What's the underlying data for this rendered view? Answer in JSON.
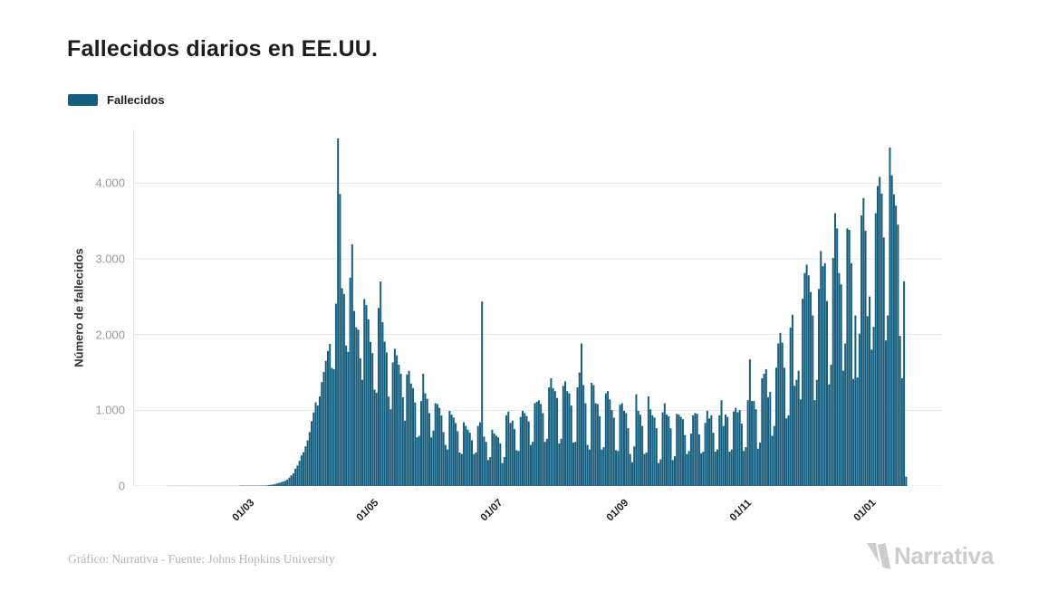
{
  "header": {
    "title": "Fallecidos diarios en EE.UU."
  },
  "legend": {
    "items": [
      {
        "label": "Fallecidos",
        "color": "#155E7D"
      }
    ]
  },
  "footer": {
    "credit": "Gráfico: Narrativa - Fuente: Johns Hopkins University",
    "brand": "Narrativa"
  },
  "colors": {
    "bar": "#155E7D",
    "grid": "#e6e6e6",
    "title_text": "#1d1d1b",
    "y_tick_text": "#9b9b9b",
    "x_tick_text": "#1d1d1b",
    "credit_text": "#b5b5b5",
    "brand_text": "#cdcdcd"
  },
  "chart_data": {
    "type": "bar",
    "title": "Fallecidos diarios en EE.UU.",
    "series_name": "Fallecidos",
    "xlabel": "",
    "ylabel": "Número de fallecidos",
    "start_date": "2020-01-22",
    "end_date": "2021-01-20",
    "ylim": [
      0,
      4710
    ],
    "grid": "horizontal",
    "legend_position": "top-left",
    "y_ticks": [
      {
        "label": "0",
        "value": 0
      },
      {
        "label": "1.000",
        "value": 1000
      },
      {
        "label": "2.000",
        "value": 2000
      },
      {
        "label": "3.000",
        "value": 3000
      },
      {
        "label": "4.000",
        "value": 4000
      }
    ],
    "x_ticks": [
      {
        "label": "01/03",
        "day": 39
      },
      {
        "label": "01/05",
        "day": 100
      },
      {
        "label": "01/07",
        "day": 161
      },
      {
        "label": "01/09",
        "day": 223
      },
      {
        "label": "01/11",
        "day": 284
      },
      {
        "label": "01/01",
        "day": 345
      }
    ],
    "values": [
      0,
      0,
      0,
      0,
      0,
      0,
      0,
      0,
      0,
      0,
      0,
      0,
      0,
      0,
      0,
      0,
      0,
      0,
      0,
      0,
      0,
      0,
      0,
      0,
      0,
      0,
      0,
      0,
      0,
      0,
      0,
      0,
      0,
      0,
      0,
      0,
      1,
      1,
      1,
      1,
      2,
      3,
      4,
      3,
      5,
      4,
      6,
      7,
      6,
      9,
      13,
      16,
      20,
      24,
      33,
      41,
      50,
      59,
      68,
      86,
      112,
      141,
      166,
      228,
      270,
      332,
      404,
      447,
      523,
      602,
      712,
      857,
      972,
      1105,
      1063,
      1183,
      1372,
      1508,
      1653,
      1783,
      1877,
      1561,
      1542,
      2408,
      4591,
      3857,
      2612,
      2535,
      1856,
      1772,
      2752,
      3192,
      2312,
      2096,
      2065,
      1687,
      1403,
      2471,
      2390,
      2201,
      1903,
      1755,
      1273,
      1232,
      2352,
      2701,
      2163,
      1907,
      1764,
      1181,
      1013,
      1633,
      1813,
      1725,
      1602,
      1483,
      1172,
      863,
      1473,
      1522,
      1353,
      1293,
      1103,
      643,
      662,
      1122,
      1483,
      1223,
      1152,
      963,
      643,
      732,
      1093,
      1083,
      1033,
      932,
      713,
      543,
      483,
      993,
      943,
      903,
      833,
      723,
      443,
      423,
      843,
      793,
      743,
      703,
      603,
      423,
      443,
      793,
      843,
      2437,
      653,
      583,
      343,
      383,
      743,
      693,
      663,
      643,
      563,
      303,
      383,
      933,
      983,
      833,
      863,
      753,
      473,
      463,
      913,
      993,
      963,
      923,
      853,
      543,
      583,
      1093,
      1113,
      1133,
      1083,
      963,
      583,
      623,
      1303,
      1423,
      1293,
      1253,
      1163,
      563,
      623,
      1323,
      1383,
      1253,
      1223,
      1063,
      573,
      583,
      1303,
      1499,
      1883,
      1333,
      1093,
      543,
      483,
      1363,
      1333,
      1093,
      1083,
      923,
      483,
      513,
      1223,
      1253,
      1143,
      1003,
      903,
      473,
      463,
      1073,
      1093,
      993,
      963,
      763,
      423,
      313,
      523,
      1213,
      993,
      943,
      793,
      423,
      443,
      1183,
      1013,
      933,
      903,
      763,
      303,
      353,
      973,
      1093,
      943,
      923,
      763,
      343,
      393,
      953,
      943,
      913,
      883,
      673,
      423,
      463,
      693,
      933,
      963,
      953,
      683,
      433,
      453,
      833,
      993,
      893,
      933,
      703,
      453,
      483,
      933,
      1133,
      793,
      943,
      913,
      453,
      483,
      983,
      1033,
      973,
      1003,
      823,
      463,
      513,
      1133,
      1673,
      1123,
      1123,
      1013,
      493,
      573,
      1423,
      1483,
      1543,
      1173,
      1243,
      663,
      793,
      1563,
      1883,
      2023,
      1893,
      1563,
      893,
      933,
      2093,
      2263,
      1323,
      1403,
      1523,
      1143,
      2473,
      2813,
      2923,
      2783,
      2563,
      2253,
      1133,
      1403,
      2603,
      3103,
      2903,
      2943,
      2443,
      1343,
      1603,
      3013,
      3603,
      3403,
      2813,
      2663,
      1523,
      1883,
      3403,
      3383,
      2943,
      1413,
      2253,
      1433,
      2013,
      3573,
      3803,
      3373,
      2243,
      2503,
      1803,
      2103,
      3603,
      3963,
      4083,
      3863,
      3283,
      1923,
      2253,
      4470,
      4103,
      3853,
      3703,
      3453,
      1983,
      1423,
      2703,
      123
    ]
  }
}
